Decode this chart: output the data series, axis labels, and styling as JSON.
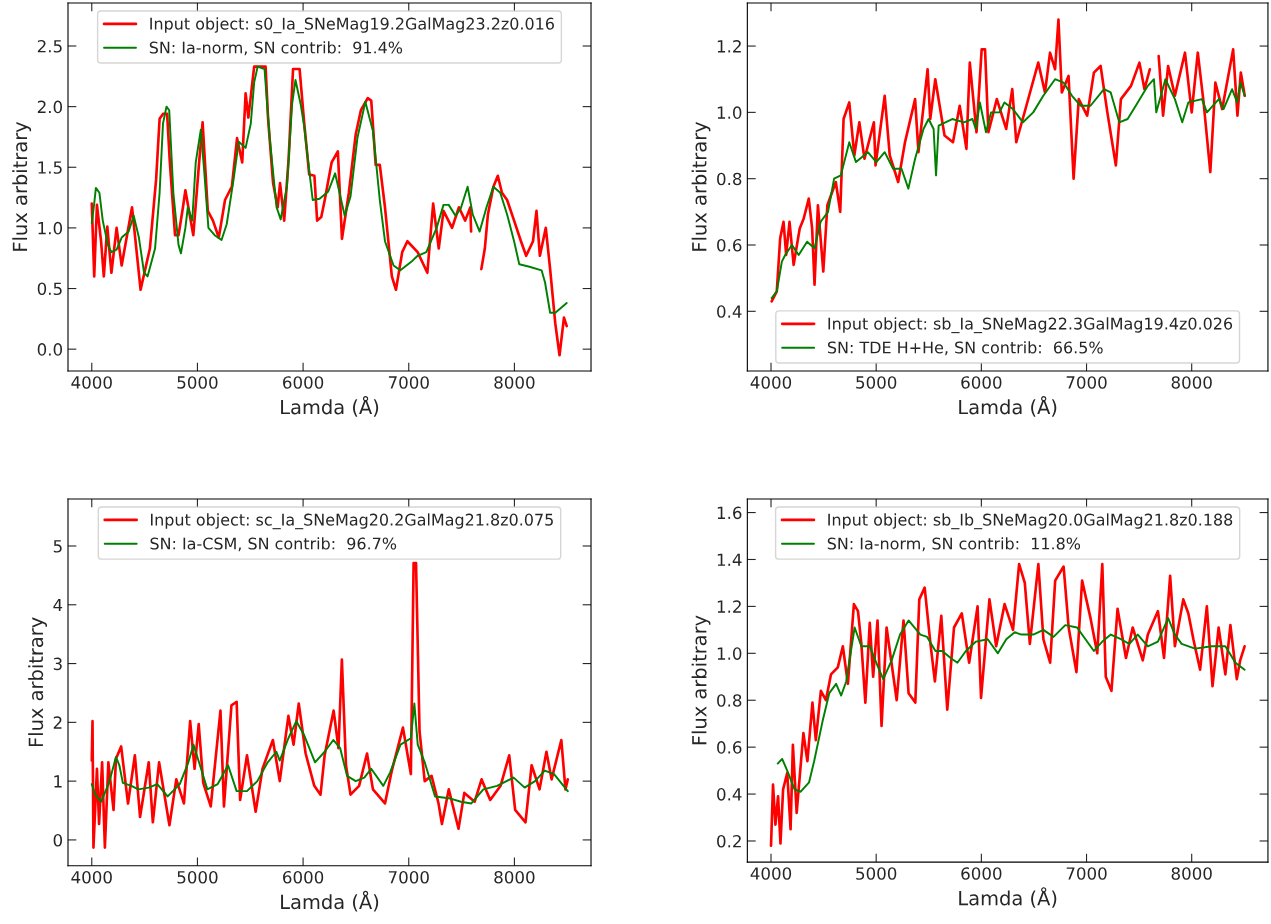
{
  "chart_data": [
    {
      "type": "line",
      "xlabel": "Lamda (Å)",
      "ylabel": "Flux arbitrary",
      "xlim": [
        3775,
        8725
      ],
      "ylim": [
        -0.18,
        2.855
      ],
      "xticks": [
        4000,
        5000,
        6000,
        7000,
        8000
      ],
      "yticks": [
        {
          "value": 0,
          "label": "0.0"
        },
        0.5,
        {
          "value": 1,
          "label": "1.0"
        },
        1.5,
        {
          "value": 2,
          "label": "2.0"
        },
        2.5
      ],
      "legend": "top",
      "grid": false,
      "series": [
        {
          "name": "Input object: s0_Ia_SNeMag19.2GalMag23.2z0.016",
          "color": "#ff0000",
          "x": [
            4000,
            4023,
            4049,
            4088,
            4114,
            4147,
            4186,
            4235,
            4283,
            4381,
            4462,
            4550,
            4609,
            4642,
            4674,
            4713,
            4739,
            4788,
            4821,
            4863,
            4886,
            4961,
            5016,
            5049,
            5098,
            5147,
            5202,
            5261,
            5326,
            5375,
            5424,
            5456,
            5482,
            5537,
            5645,
            5668,
            5716,
            5759,
            5782,
            5821,
            5863,
            5905,
            5967,
            6010,
            6058,
            6107,
            6133,
            6172,
            6205,
            6270,
            6329,
            6368,
            6433,
            6498,
            6547,
            6612,
            6645,
            6687,
            6726,
            6775,
            6840,
            6879,
            6938,
            6987,
            7084,
            7176,
            7231,
            7284,
            7329,
            7410,
            7475,
            7534,
            7583,
            7590,
            7640,
            7687,
            7720,
            7749,
            7801,
            7843,
            7882,
            7931,
            7997,
            8062,
            8111,
            8176,
            8209,
            8241,
            8297,
            8338,
            8387,
            8427,
            8469,
            8495
          ],
          "values": [
            1.2,
            0.6,
            1.19,
            0.89,
            0.6,
            1.01,
            0.63,
            1.0,
            0.69,
            1.17,
            0.49,
            0.83,
            1.4,
            1.9,
            1.94,
            1.94,
            1.54,
            0.94,
            0.94,
            1.17,
            1.31,
            0.94,
            1.54,
            1.87,
            1.14,
            1.06,
            0.92,
            1.23,
            1.34,
            1.74,
            1.54,
            2.11,
            1.91,
            2.33,
            2.33,
            1.91,
            1.37,
            1.17,
            1.37,
            1.06,
            1.57,
            2.31,
            2.31,
            1.87,
            1.44,
            1.43,
            1.06,
            1.09,
            1.23,
            1.54,
            1.63,
            0.91,
            1.29,
            1.77,
            1.97,
            2.07,
            2.05,
            1.52,
            1.52,
            1.17,
            0.6,
            0.49,
            0.8,
            0.89,
            0.8,
            0.63,
            1.2,
            0.83,
            1.14,
            1.0,
            1.17,
            1.06,
            1.17,
            0.97,
            null,
            0.66,
            0.83,
            1.11,
            1.34,
            1.43,
            1.29,
            1.23,
            1.06,
            0.89,
            0.77,
            0.89,
            1.14,
            0.77,
            1.0,
            0.66,
            0.21,
            -0.05,
            0.26,
            0.19
          ]
        },
        {
          "name": "SN: Ia-norm, SN contrib:  91.4%",
          "color": "#008000",
          "x": [
            4000,
            4023,
            4039,
            4072,
            4104,
            4153,
            4186,
            4235,
            4283,
            4349,
            4397,
            4446,
            4495,
            4528,
            4599,
            4642,
            4674,
            4707,
            4733,
            4772,
            4821,
            4844,
            4886,
            4909,
            4951,
            4984,
            5032,
            5065,
            5104,
            5163,
            5228,
            5277,
            5342,
            5391,
            5456,
            5505,
            5537,
            5570,
            5635,
            5684,
            5749,
            5788,
            5847,
            5896,
            5928,
            5977,
            6010,
            6049,
            6091,
            6156,
            6238,
            6303,
            6394,
            6449,
            6514,
            6589,
            6661,
            6726,
            6775,
            6856,
            6921,
            7036,
            7084,
            7166,
            7264,
            7329,
            7378,
            7443,
            7492,
            7557,
            7606,
            7671,
            7736,
            7801,
            7866,
            7931,
            7997,
            8046,
            8143,
            8257,
            8290,
            8338,
            8387,
            8495
          ],
          "values": [
            1.04,
            1.2,
            1.33,
            1.29,
            1.06,
            0.86,
            0.8,
            0.82,
            0.92,
            0.97,
            1.1,
            0.92,
            0.63,
            0.6,
            0.83,
            1.29,
            1.86,
            2.0,
            1.97,
            1.29,
            0.86,
            0.79,
            1.0,
            1.17,
            1.06,
            1.54,
            1.81,
            1.46,
            1.0,
            0.94,
            0.9,
            1.03,
            1.4,
            1.71,
            1.66,
            1.86,
            2.2,
            2.33,
            2.31,
            1.74,
            1.17,
            1.07,
            1.34,
            2.02,
            2.22,
            2.02,
            1.84,
            1.54,
            1.23,
            1.24,
            1.3,
            1.45,
            1.1,
            1.26,
            1.74,
            2.04,
            1.8,
            1.23,
            0.89,
            0.69,
            0.65,
            0.73,
            0.77,
            0.8,
            1.0,
            1.19,
            1.19,
            1.1,
            1.16,
            1.34,
            1.11,
            0.97,
            1.17,
            1.34,
            1.29,
            1.11,
            0.89,
            0.7,
            0.68,
            0.65,
            0.55,
            0.3,
            0.3,
            0.38
          ]
        }
      ]
    },
    {
      "type": "line",
      "xlabel": "Lamda (Å)",
      "ylabel": "Flux arbitrary",
      "xlim": [
        3775,
        8725
      ],
      "ylim": [
        0.22,
        1.33
      ],
      "xticks": [
        4000,
        5000,
        6000,
        7000,
        8000
      ],
      "yticks": [
        0.4,
        0.6,
        0.8,
        {
          "value": 1,
          "label": "1.0"
        },
        1.2
      ],
      "legend": "bottom",
      "grid": false,
      "series": [
        {
          "name": "Input object: sb_Ia_SNeMag22.3GalMag19.4z0.026",
          "color": "#ff0000",
          "x": [
            4006,
            4055,
            4087,
            4119,
            4144,
            4176,
            4215,
            4273,
            4311,
            4359,
            4391,
            4414,
            4446,
            4497,
            4536,
            4616,
            4658,
            4690,
            4744,
            4792,
            4840,
            4889,
            4978,
            4994,
            5081,
            5129,
            5209,
            5274,
            5370,
            5402,
            5489,
            5514,
            5562,
            5650,
            5730,
            5794,
            5858,
            5890,
            5954,
            6003,
            6035,
            6067,
            6147,
            6236,
            6294,
            6332,
            6428,
            6541,
            6605,
            6653,
            6701,
            6733,
            6765,
            6829,
            6877,
            6926,
            7006,
            7070,
            7134,
            7198,
            7279,
            7327,
            7423,
            7503,
            7551,
            7602,
            7640,
            7686,
            7728,
            7776,
            7840,
            7936,
            8000,
            8058,
            8113,
            8177,
            8225,
            8290,
            8394,
            8435,
            8467,
            8504
          ],
          "values": [
            0.43,
            0.46,
            0.62,
            0.67,
            0.57,
            0.67,
            0.54,
            0.65,
            0.68,
            0.74,
            0.65,
            0.48,
            0.72,
            0.52,
            0.72,
            0.79,
            0.7,
            0.98,
            1.03,
            0.87,
            0.97,
            0.86,
            0.97,
            0.84,
            1.05,
            0.87,
            0.79,
            0.91,
            1.04,
            0.88,
            1.13,
            0.98,
            1.1,
            0.93,
            0.91,
            1.02,
            0.89,
            1.15,
            0.94,
            1.19,
            1.19,
            0.94,
            1.04,
            0.95,
            1.07,
            0.91,
            1.02,
            1.15,
            1.06,
            1.18,
            1.13,
            1.28,
            1.06,
            1.11,
            0.8,
            1.04,
            0.99,
            1.12,
            1.14,
            1.0,
            0.84,
            1.04,
            1.08,
            1.15,
            1.07,
            1.13,
            null,
            1.17,
            0.99,
            1.14,
            1.05,
            1.18,
            1.0,
            1.18,
            1.03,
            0.82,
            1.09,
            1.01,
            1.19,
            0.99,
            1.12,
            1.05
          ]
        },
        {
          "name": "SN: TDE H+He, SN contrib:  66.5%",
          "color": "#008000",
          "x": [
            4006,
            4055,
            4103,
            4135,
            4199,
            4263,
            4343,
            4414,
            4472,
            4542,
            4600,
            4664,
            4744,
            4808,
            4921,
            5001,
            5081,
            5161,
            5241,
            5306,
            5370,
            5450,
            5498,
            5546,
            5569,
            5594,
            5723,
            5835,
            5915,
            5947,
            5986,
            6044,
            6092,
            6172,
            6220,
            6300,
            6396,
            6493,
            6589,
            6701,
            6781,
            6862,
            6942,
            7038,
            7166,
            7230,
            7311,
            7391,
            7487,
            7583,
            7641,
            7663,
            7750,
            7840,
            7910,
            7968,
            8097,
            8145,
            8258,
            8303,
            8384,
            8432,
            8464,
            8504
          ],
          "values": [
            0.44,
            0.46,
            0.55,
            0.57,
            0.6,
            0.57,
            0.61,
            0.59,
            0.67,
            0.7,
            0.8,
            0.81,
            0.91,
            0.85,
            0.88,
            0.85,
            0.88,
            0.83,
            0.83,
            0.77,
            0.86,
            0.95,
            0.98,
            0.95,
            0.81,
            0.96,
            0.98,
            0.97,
            0.98,
            0.95,
            1.03,
            0.94,
            1.0,
            1.0,
            1.03,
            1.01,
            0.97,
            1.0,
            1.05,
            1.1,
            1.09,
            1.05,
            1.02,
            1.02,
            1.07,
            1.06,
            0.97,
            0.98,
            1.03,
            1.08,
            1.1,
            1.0,
            1.1,
            1.04,
            0.97,
            1.03,
            1.04,
            1.0,
            1.04,
            1.01,
            1.07,
            1.03,
            1.09,
            1.05
          ]
        }
      ]
    },
    {
      "type": "line",
      "xlabel": "Lamda (Å)",
      "ylabel": "Flux arbitrary",
      "xlim": [
        3775,
        8725
      ],
      "ylim": [
        -0.44,
        5.8
      ],
      "xticks": [
        4000,
        5000,
        6000,
        7000,
        8000
      ],
      "yticks": [
        0,
        1,
        2,
        3,
        4,
        5
      ],
      "legend": "top",
      "grid": false,
      "series": [
        {
          "name": "Input object: sc_Ia_SNeMag20.2GalMag21.8z0.075",
          "color": "#ff0000",
          "x": [
            4000,
            4007,
            4016,
            4049,
            4069,
            4098,
            4124,
            4157,
            4206,
            4229,
            4278,
            4343,
            4408,
            4457,
            4539,
            4578,
            4637,
            4735,
            4800,
            4872,
            4931,
            4973,
            5012,
            5055,
            5126,
            5218,
            5251,
            5322,
            5371,
            5404,
            5469,
            5551,
            5616,
            5714,
            5779,
            5861,
            5910,
            5959,
            6024,
            6106,
            6165,
            6204,
            6289,
            6335,
            6367,
            6406,
            6449,
            6530,
            6605,
            6661,
            6775,
            6840,
            6945,
            7020,
            7046,
            7069,
            7102,
            7151,
            7216,
            7282,
            7314,
            7379,
            7471,
            7526,
            7624,
            7689,
            7771,
            7869,
            7951,
            8007,
            8105,
            8163,
            8238,
            8303,
            8352,
            8444,
            8483,
            8505
          ],
          "values": [
            1.35,
            2.02,
            -0.13,
            1.21,
            0.27,
            1.32,
            -0.13,
            1.32,
            0.51,
            1.38,
            1.59,
            0.62,
            1.44,
            0.39,
            1.32,
            0.3,
            1.32,
            0.25,
            1.03,
            0.62,
            2.02,
            1.21,
            1.97,
            0.97,
            0.57,
            2.2,
            0.57,
            2.29,
            2.35,
            0.68,
            1.44,
            0.48,
            1.21,
            1.7,
            1.0,
            2.11,
            1.62,
            2.32,
            1.47,
            0.92,
            0.77,
            1.44,
            2.2,
            1.56,
            3.07,
            1.27,
            0.77,
            0.92,
            1.47,
            0.86,
            0.62,
            1.18,
            1.91,
            1.12,
            4.71,
            4.71,
            1.85,
            1.0,
            1.09,
            0.62,
            0.27,
            0.86,
            0.19,
            0.8,
            0.65,
            1.03,
            0.68,
            0.92,
            1.44,
            0.51,
            0.3,
            1.27,
            0.86,
            1.5,
            1.03,
            1.7,
            0.86,
            1.03
          ]
        },
        {
          "name": "SN: Ia-CSM, SN contrib:  96.7%",
          "color": "#008000",
          "x": [
            4000,
            4033,
            4088,
            4163,
            4229,
            4261,
            4294,
            4375,
            4441,
            4539,
            4620,
            4718,
            4833,
            4914,
            4963,
            5029,
            5094,
            5192,
            5290,
            5371,
            5469,
            5567,
            5665,
            5747,
            5779,
            5861,
            5936,
            6008,
            6113,
            6204,
            6286,
            6351,
            6416,
            6498,
            6579,
            6645,
            6759,
            6824,
            6922,
            7020,
            7053,
            7085,
            7151,
            7249,
            7379,
            7494,
            7592,
            7706,
            7836,
            7993,
            8097,
            8195,
            8287,
            8375,
            8505
          ],
          "values": [
            0.95,
            0.77,
            0.65,
            0.97,
            1.41,
            1.27,
            0.97,
            0.92,
            0.86,
            0.89,
            0.95,
            0.74,
            0.95,
            1.32,
            1.62,
            1.24,
            0.86,
            0.95,
            1.27,
            0.83,
            0.83,
            1.0,
            1.32,
            1.5,
            1.35,
            1.73,
            2.02,
            1.79,
            1.32,
            1.5,
            1.7,
            1.56,
            1.09,
            1.0,
            1.06,
            1.21,
            0.92,
            1.15,
            1.62,
            1.73,
            2.32,
            1.62,
            1.32,
            0.74,
            0.71,
            0.65,
            0.62,
            0.86,
            0.92,
            1.06,
            0.89,
            1.0,
            1.18,
            1.12,
            0.83
          ]
        }
      ]
    },
    {
      "type": "line",
      "xlabel": "Lamda (Å)",
      "ylabel": "Flux arbitrary",
      "xlim": [
        3775,
        8725
      ],
      "ylim": [
        0.11,
        1.658
      ],
      "xticks": [
        4000,
        5000,
        6000,
        7000,
        8000
      ],
      "yticks": [
        0.2,
        0.4,
        0.6,
        0.8,
        {
          "value": 1,
          "label": "1.0"
        },
        1.2,
        1.4,
        1.6
      ],
      "legend": "top",
      "grid": false,
      "series": [
        {
          "name": "Input object: sb_Ib_SNeMag20.0GalMag21.8z0.188",
          "color": "#ff0000",
          "x": [
            4000,
            4019,
            4042,
            4067,
            4090,
            4115,
            4154,
            4186,
            4208,
            4244,
            4276,
            4308,
            4346,
            4394,
            4426,
            4474,
            4522,
            4570,
            4635,
            4683,
            4731,
            4788,
            4827,
            4859,
            4897,
            4939,
            4971,
            5013,
            5051,
            5099,
            5195,
            5260,
            5308,
            5372,
            5410,
            5461,
            5516,
            5558,
            5619,
            5676,
            5740,
            5814,
            5884,
            5964,
            5997,
            6077,
            6141,
            6221,
            6301,
            6359,
            6413,
            6461,
            6542,
            6590,
            6654,
            6702,
            6782,
            6830,
            6904,
            6958,
            7038,
            7102,
            7150,
            7183,
            7237,
            7295,
            7375,
            7439,
            7535,
            7583,
            7679,
            7737,
            7795,
            7840,
            7920,
            7968,
            8016,
            8080,
            8144,
            8198,
            8256,
            8320,
            8368,
            8429,
            8461,
            8503
          ],
          "values": [
            0.18,
            0.44,
            0.27,
            0.39,
            0.19,
            0.42,
            0.49,
            0.25,
            0.61,
            0.32,
            0.49,
            0.66,
            0.54,
            0.79,
            0.63,
            0.84,
            0.8,
            0.91,
            0.94,
            1.03,
            0.87,
            1.21,
            1.18,
            1.04,
            0.79,
            1.13,
            0.9,
            1.14,
            0.69,
            1.11,
            0.8,
            1.14,
            0.83,
            0.79,
            1.23,
            1.28,
            1.04,
            0.88,
            1.16,
            0.76,
            1.11,
            1.17,
            0.96,
            1.2,
            0.81,
            1.23,
            1.03,
            1.21,
            1.1,
            1.38,
            1.3,
            1.04,
            1.38,
            1.06,
            0.96,
            1.31,
            1.37,
            1.11,
            0.92,
            1.31,
            1.15,
            1.0,
            1.38,
            0.9,
            0.84,
            1.19,
            0.98,
            1.11,
            0.97,
            1.08,
            1.18,
            0.98,
            1.33,
            1.03,
            1.23,
            1.17,
            1.06,
            0.93,
            1.2,
            0.86,
            1.11,
            0.91,
            1.12,
            0.89,
            0.97,
            1.03
          ]
        },
        {
          "name": "SN: Ia-norm, SN contrib:  11.8%",
          "color": "#008000",
          "x": [
            4064,
            4106,
            4154,
            4224,
            4282,
            4362,
            4410,
            4490,
            4554,
            4619,
            4667,
            4715,
            4795,
            4859,
            4939,
            5019,
            5067,
            5147,
            5227,
            5308,
            5420,
            5484,
            5564,
            5628,
            5708,
            5772,
            5853,
            5949,
            6061,
            6157,
            6237,
            6317,
            6381,
            6494,
            6590,
            6686,
            6798,
            6910,
            6990,
            7070,
            7150,
            7231,
            7327,
            7407,
            7487,
            7583,
            7679,
            7776,
            7840,
            7904,
            8032,
            8192,
            8320,
            8416,
            8503
          ],
          "values": [
            0.53,
            0.55,
            0.5,
            0.42,
            0.41,
            0.45,
            0.54,
            0.71,
            0.83,
            0.87,
            0.82,
            0.88,
            1.11,
            1.03,
            1.03,
            0.94,
            0.89,
            0.97,
            1.08,
            1.14,
            1.08,
            1.07,
            1.01,
            1.01,
            0.98,
            0.96,
            1.01,
            1.05,
            1.06,
            1.0,
            1.06,
            1.09,
            1.08,
            1.08,
            1.1,
            1.07,
            1.12,
            1.11,
            1.06,
            1.01,
            1.05,
            1.08,
            1.06,
            1.04,
            1.08,
            1.03,
            1.05,
            1.15,
            1.08,
            1.04,
            1.02,
            1.03,
            1.03,
            0.96,
            0.93
          ]
        }
      ]
    }
  ]
}
